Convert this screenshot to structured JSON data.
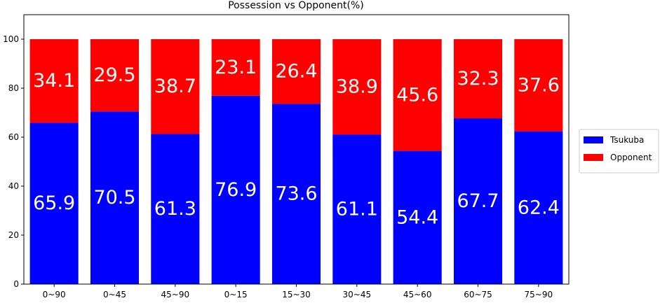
{
  "chart_data": {
    "type": "bar",
    "stacked": true,
    "title": "Possession vs Opponent(%)",
    "xlabel": "",
    "ylabel": "",
    "categories": [
      "0~90",
      "0~45",
      "45~90",
      "0~15",
      "15~30",
      "30~45",
      "45~60",
      "60~75",
      "75~90"
    ],
    "series": [
      {
        "name": "Tsukuba",
        "color": "#0000ff",
        "values": [
          65.9,
          70.5,
          61.3,
          76.9,
          73.6,
          61.1,
          54.4,
          67.7,
          62.4
        ]
      },
      {
        "name": "Opponent",
        "color": "#ff0000",
        "values": [
          34.1,
          29.5,
          38.7,
          23.1,
          26.4,
          38.9,
          45.6,
          32.3,
          37.6
        ]
      }
    ],
    "ylim": [
      0,
      110
    ],
    "yticks": [
      0,
      20,
      40,
      60,
      80,
      100
    ],
    "grid": false,
    "legend_position": "right",
    "data_label_color": "#ffffff"
  }
}
